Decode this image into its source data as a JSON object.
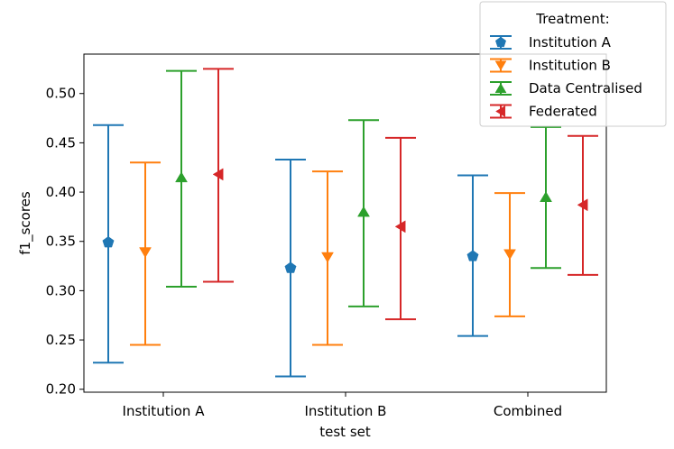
{
  "chart_data": {
    "type": "errorbar",
    "xlabel": "test set",
    "ylabel": "f1_scores",
    "categories": [
      "Institution A",
      "Institution B",
      "Combined"
    ],
    "ylim": [
      0.197,
      0.54
    ],
    "yticks": [
      "0.20",
      "0.25",
      "0.30",
      "0.35",
      "0.40",
      "0.45",
      "0.50"
    ],
    "grid": false,
    "legend": {
      "title": "Treatment:",
      "placement": "top-right"
    },
    "series": [
      {
        "name": "Institution A",
        "color": "#1f77b4",
        "marker": "pentagon",
        "center": [
          0.349,
          0.323,
          0.335
        ],
        "low": [
          0.227,
          0.213,
          0.254
        ],
        "high": [
          0.468,
          0.433,
          0.417
        ]
      },
      {
        "name": "Institution B",
        "color": "#ff7f0e",
        "marker": "triangle-down",
        "center": [
          0.339,
          0.334,
          0.337
        ],
        "low": [
          0.245,
          0.245,
          0.274
        ],
        "high": [
          0.43,
          0.421,
          0.399
        ]
      },
      {
        "name": "Data Centralised",
        "color": "#2ca02c",
        "marker": "triangle-up",
        "center": [
          0.415,
          0.38,
          0.395
        ],
        "low": [
          0.304,
          0.284,
          0.323
        ],
        "high": [
          0.523,
          0.473,
          0.466
        ]
      },
      {
        "name": "Federated",
        "color": "#d62728",
        "marker": "triangle-left",
        "center": [
          0.418,
          0.365,
          0.387
        ],
        "low": [
          0.309,
          0.271,
          0.316
        ],
        "high": [
          0.525,
          0.455,
          0.457
        ]
      }
    ]
  }
}
